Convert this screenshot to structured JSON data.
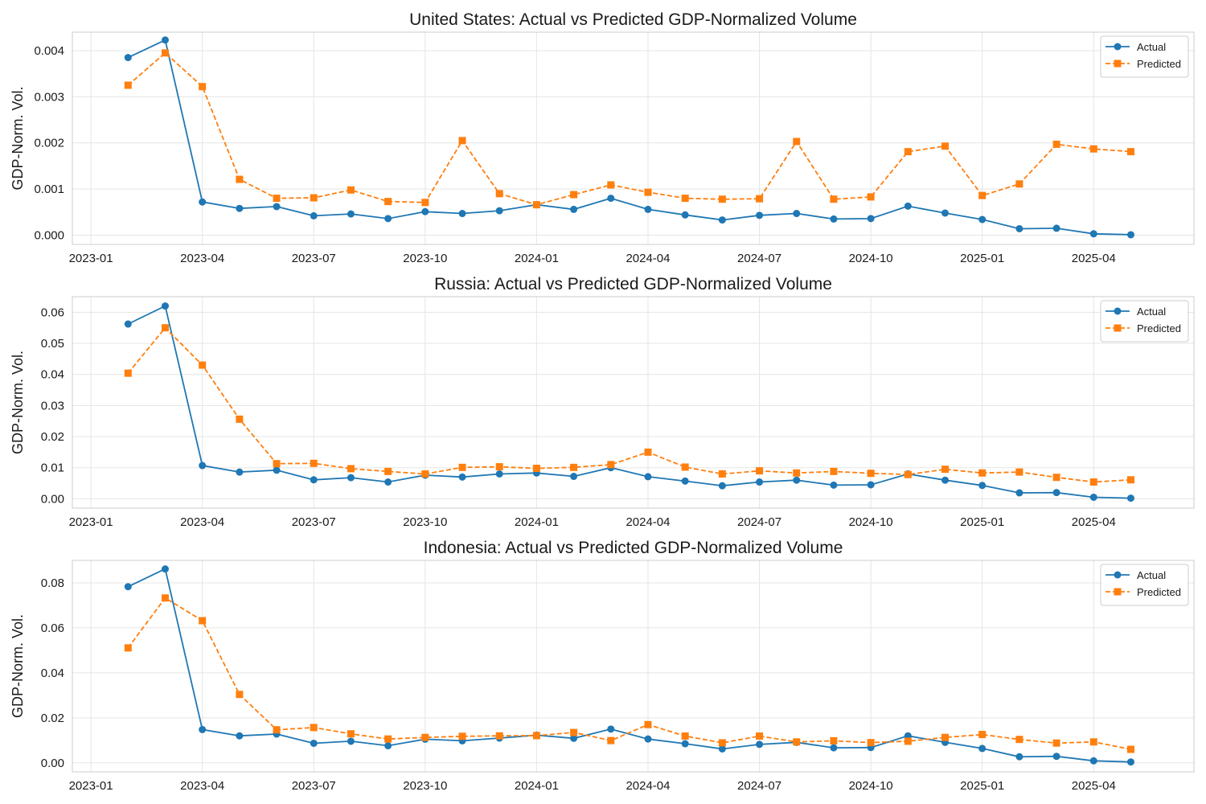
{
  "chart_data": [
    {
      "type": "line",
      "title": "United States: Actual vs Predicted GDP-Normalized Volume",
      "ylabel": "GDP-Norm. Vol.",
      "xlabel": "",
      "x": [
        "2023-02",
        "2023-03",
        "2023-04",
        "2023-05",
        "2023-06",
        "2023-07",
        "2023-08",
        "2023-09",
        "2023-10",
        "2023-11",
        "2023-12",
        "2024-01",
        "2024-02",
        "2024-03",
        "2024-04",
        "2024-05",
        "2024-06",
        "2024-07",
        "2024-08",
        "2024-09",
        "2024-10",
        "2024-11",
        "2024-12",
        "2025-01",
        "2025-02",
        "2025-03",
        "2025-04",
        "2025-05"
      ],
      "xticks": [
        "2023-01",
        "2023-04",
        "2023-07",
        "2023-10",
        "2024-01",
        "2024-04",
        "2024-07",
        "2024-10",
        "2025-01",
        "2025-04"
      ],
      "yticks": [
        "0.000",
        "0.001",
        "0.002",
        "0.003",
        "0.004"
      ],
      "ylim": [
        -0.0002,
        0.0044
      ],
      "grid": true,
      "legend_position": "top-right",
      "series": [
        {
          "name": "Actual",
          "color": "#1f77b4",
          "marker": "circle",
          "linestyle": "solid",
          "values": [
            0.00385,
            0.00423,
            0.00072,
            0.00058,
            0.00062,
            0.00042,
            0.00046,
            0.00036,
            0.00051,
            0.00047,
            0.00053,
            0.00066,
            0.00056,
            0.0008,
            0.00056,
            0.00044,
            0.00033,
            0.00043,
            0.00047,
            0.00035,
            0.00036,
            0.00063,
            0.00048,
            0.00034,
            0.00014,
            0.00015,
            3e-05,
            1e-05
          ]
        },
        {
          "name": "Predicted",
          "color": "#ff7f0e",
          "marker": "square",
          "linestyle": "dashed",
          "values": [
            0.00325,
            0.00395,
            0.00322,
            0.00121,
            0.0008,
            0.00081,
            0.00098,
            0.00073,
            0.00071,
            0.00205,
            0.0009,
            0.00066,
            0.00088,
            0.00109,
            0.00093,
            0.0008,
            0.00078,
            0.00079,
            0.00203,
            0.00078,
            0.00083,
            0.00181,
            0.00193,
            0.00086,
            0.00111,
            0.00197,
            0.00187,
            0.00181
          ]
        }
      ]
    },
    {
      "type": "line",
      "title": "Russia: Actual vs Predicted GDP-Normalized Volume",
      "ylabel": "GDP-Norm. Vol.",
      "xlabel": "",
      "x": [
        "2023-02",
        "2023-03",
        "2023-04",
        "2023-05",
        "2023-06",
        "2023-07",
        "2023-08",
        "2023-09",
        "2023-10",
        "2023-11",
        "2023-12",
        "2024-01",
        "2024-02",
        "2024-03",
        "2024-04",
        "2024-05",
        "2024-06",
        "2024-07",
        "2024-08",
        "2024-09",
        "2024-10",
        "2024-11",
        "2024-12",
        "2025-01",
        "2025-02",
        "2025-03",
        "2025-04",
        "2025-05"
      ],
      "xticks": [
        "2023-01",
        "2023-04",
        "2023-07",
        "2023-10",
        "2024-01",
        "2024-04",
        "2024-07",
        "2024-10",
        "2025-01",
        "2025-04"
      ],
      "yticks": [
        "0.00",
        "0.01",
        "0.02",
        "0.03",
        "0.04",
        "0.05",
        "0.06"
      ],
      "ylim": [
        -0.003,
        0.065
      ],
      "grid": true,
      "legend_position": "top-right",
      "series": [
        {
          "name": "Actual",
          "color": "#1f77b4",
          "marker": "circle",
          "linestyle": "solid",
          "values": [
            0.0562,
            0.062,
            0.0107,
            0.0086,
            0.0092,
            0.0061,
            0.0068,
            0.0054,
            0.0076,
            0.007,
            0.008,
            0.0083,
            0.0072,
            0.01,
            0.0071,
            0.0057,
            0.0042,
            0.0054,
            0.006,
            0.0044,
            0.0045,
            0.008,
            0.006,
            0.0043,
            0.0019,
            0.002,
            0.0005,
            0.0002
          ]
        },
        {
          "name": "Predicted",
          "color": "#ff7f0e",
          "marker": "square",
          "linestyle": "dashed",
          "values": [
            0.0404,
            0.055,
            0.043,
            0.0256,
            0.0113,
            0.0114,
            0.0097,
            0.0088,
            0.008,
            0.0101,
            0.0103,
            0.0098,
            0.0101,
            0.011,
            0.015,
            0.0102,
            0.008,
            0.009,
            0.0083,
            0.0088,
            0.0082,
            0.0078,
            0.0095,
            0.0083,
            0.0086,
            0.0069,
            0.0054,
            0.0061
          ]
        }
      ]
    },
    {
      "type": "line",
      "title": "Indonesia: Actual vs Predicted GDP-Normalized Volume",
      "ylabel": "GDP-Norm. Vol.",
      "xlabel": "",
      "x": [
        "2023-02",
        "2023-03",
        "2023-04",
        "2023-05",
        "2023-06",
        "2023-07",
        "2023-08",
        "2023-09",
        "2023-10",
        "2023-11",
        "2023-12",
        "2024-01",
        "2024-02",
        "2024-03",
        "2024-04",
        "2024-05",
        "2024-06",
        "2024-07",
        "2024-08",
        "2024-09",
        "2024-10",
        "2024-11",
        "2024-12",
        "2025-01",
        "2025-02",
        "2025-03",
        "2025-04",
        "2025-05"
      ],
      "xticks": [
        "2023-01",
        "2023-04",
        "2023-07",
        "2023-10",
        "2024-01",
        "2024-04",
        "2024-07",
        "2024-10",
        "2025-01",
        "2025-04"
      ],
      "yticks": [
        "0.00",
        "0.02",
        "0.04",
        "0.06",
        "0.08"
      ],
      "ylim": [
        -0.004,
        0.09
      ],
      "grid": true,
      "legend_position": "top-right",
      "series": [
        {
          "name": "Actual",
          "color": "#1f77b4",
          "marker": "circle",
          "linestyle": "solid",
          "values": [
            0.0783,
            0.0862,
            0.0148,
            0.012,
            0.0128,
            0.0087,
            0.0096,
            0.0076,
            0.0105,
            0.0098,
            0.011,
            0.0123,
            0.0109,
            0.015,
            0.0106,
            0.0085,
            0.0062,
            0.0082,
            0.0091,
            0.0067,
            0.0068,
            0.012,
            0.0091,
            0.0064,
            0.0027,
            0.0029,
            0.0009,
            0.0004
          ]
        },
        {
          "name": "Predicted",
          "color": "#ff7f0e",
          "marker": "square",
          "linestyle": "dashed",
          "values": [
            0.0511,
            0.0733,
            0.0632,
            0.0304,
            0.0147,
            0.0157,
            0.0129,
            0.0106,
            0.0113,
            0.0118,
            0.012,
            0.0121,
            0.0135,
            0.0099,
            0.017,
            0.0119,
            0.0089,
            0.0119,
            0.0093,
            0.0098,
            0.009,
            0.0096,
            0.0113,
            0.0126,
            0.0104,
            0.0088,
            0.0093,
            0.006
          ]
        }
      ]
    }
  ]
}
